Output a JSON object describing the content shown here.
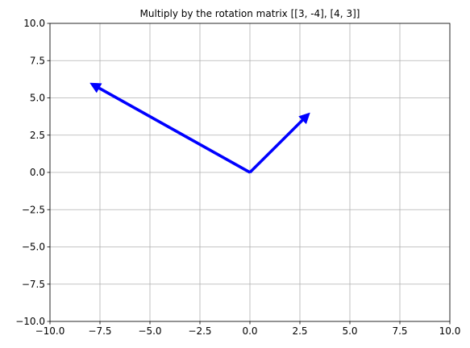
{
  "chart_data": {
    "type": "quiver",
    "title": "Multiply by the rotation matrix [[3, -4], [4, 3]]",
    "xlabel": "",
    "ylabel": "",
    "xlim": [
      -10,
      10
    ],
    "ylim": [
      -10,
      10
    ],
    "xticks": [
      -10,
      -7.5,
      -5,
      -2.5,
      0,
      2.5,
      5,
      7.5,
      10
    ],
    "yticks": [
      -10,
      -7.5,
      -5,
      -2.5,
      0,
      2.5,
      5,
      7.5,
      10
    ],
    "xtick_labels": [
      "−10.0",
      "−7.5",
      "−5.0",
      "−2.5",
      "0.0",
      "2.5",
      "5.0",
      "7.5",
      "10.0"
    ],
    "ytick_labels": [
      "−10.0",
      "−7.5",
      "−5.0",
      "−2.5",
      "0.0",
      "2.5",
      "5.0",
      "7.5",
      "10.0"
    ],
    "grid": true,
    "vectors": [
      {
        "origin": [
          0,
          0
        ],
        "components": [
          3,
          4
        ]
      },
      {
        "origin": [
          0,
          0
        ],
        "components": [
          -8,
          6
        ]
      }
    ],
    "colors": {
      "vector": "#0000ff",
      "grid": "#b0b0b0",
      "axes": "#000000"
    }
  }
}
